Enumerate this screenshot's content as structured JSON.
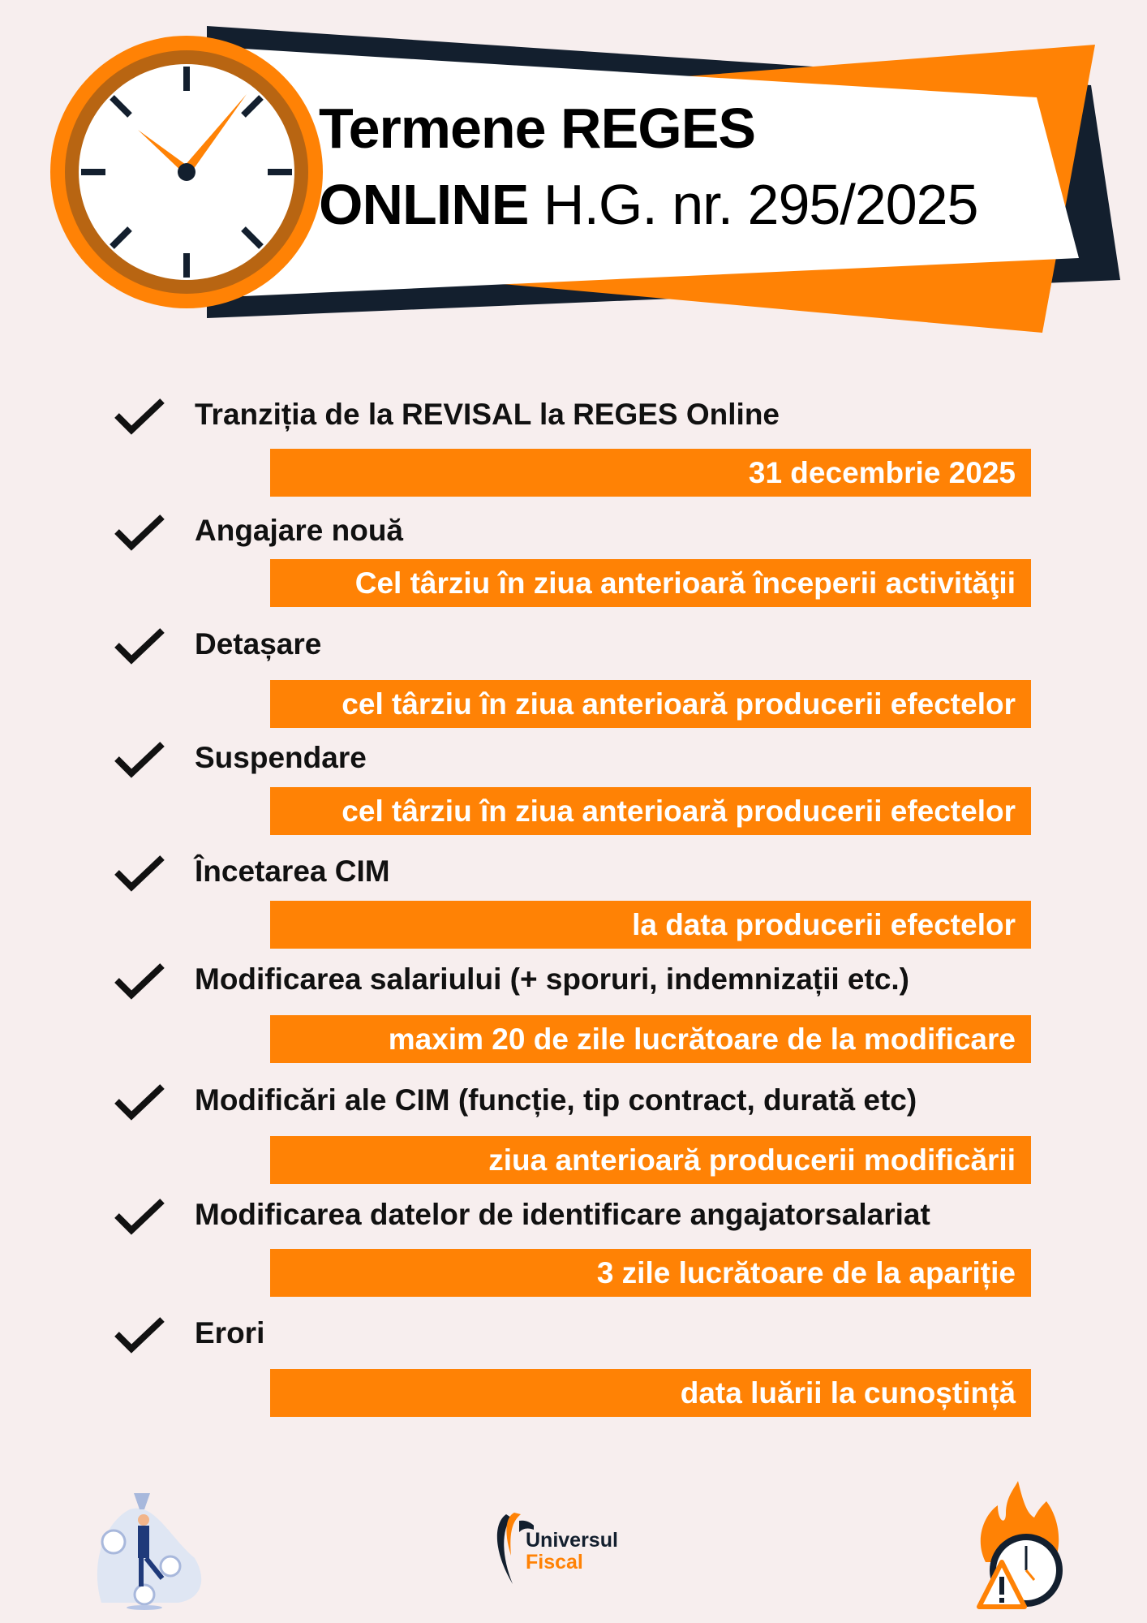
{
  "header": {
    "title_line1": "Termene REGES",
    "title_line2_bold": "ONLINE",
    "title_line2_regular": "H.G. nr. 295/2025",
    "icon": "clock-icon"
  },
  "items": [
    {
      "label": "Tranziția de la REVISAL la REGES Online",
      "deadline": "31 decembrie 2025"
    },
    {
      "label": "Angajare nouă",
      "deadline": "Cel târziu în ziua anterioară începerii activităţii"
    },
    {
      "label": "Detașare",
      "deadline": "cel târziu în ziua anterioară producerii efectelor"
    },
    {
      "label": "Suspendare",
      "deadline": "cel târziu în ziua anterioară producerii efectelor"
    },
    {
      "label": "Încetarea CIM",
      "deadline": "la data producerii efectelor"
    },
    {
      "label": "Modificarea salariului (+ sporuri, indemnizații etc.)",
      "deadline": "maxim 20 de zile lucrătoare de la modificare"
    },
    {
      "label": "Modificări ale CIM (funcție, tip contract, durată etc)",
      "deadline": "ziua anterioară producerii modificării"
    },
    {
      "label": "Modificarea datelor de identificare angajatorsalariat",
      "deadline": "3 zile lucrătoare de la apariție"
    },
    {
      "label": "Erori",
      "deadline": "data luării la cunoștință"
    }
  ],
  "footer": {
    "logo_line1": "Universul",
    "logo_line2": "Fiscal"
  },
  "colors": {
    "accent": "#ff8205",
    "dark": "#131f2e",
    "background": "#f7eeee"
  }
}
